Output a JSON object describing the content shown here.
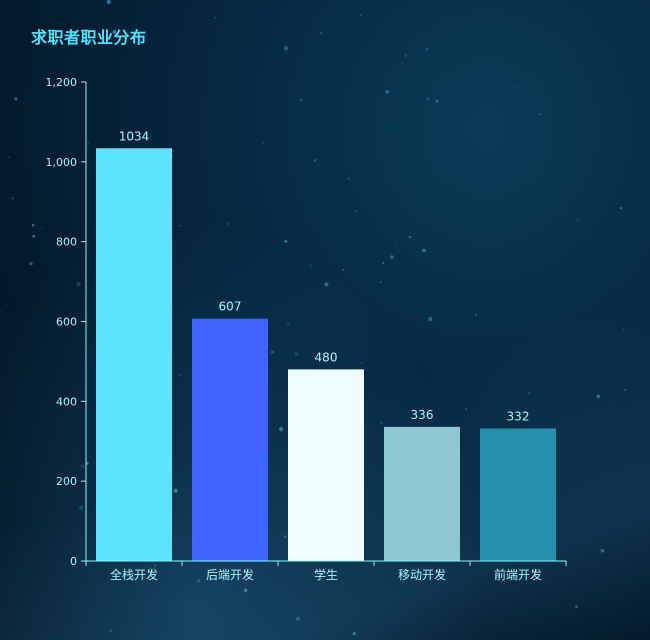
{
  "title": "求职者职业分布",
  "chart_data": {
    "type": "bar",
    "title": "求职者职业分布",
    "categories": [
      "全栈开发",
      "后端开发",
      "学生",
      "移动开发",
      "前端开发"
    ],
    "values": [
      1034,
      607,
      480,
      336,
      332
    ],
    "data_labels": [
      "1034",
      "607",
      "480",
      "336",
      "332"
    ],
    "bar_colors": [
      "#5ee3ff",
      "#3f63ff",
      "#effdff",
      "#8ec7d2",
      "#2590ae"
    ],
    "y_ticks": [
      0,
      200,
      400,
      600,
      800,
      1000,
      1200
    ],
    "y_tick_labels": [
      "0",
      "200",
      "400",
      "600",
      "800",
      "1,000",
      "1,200"
    ],
    "ylim": [
      0,
      1200
    ],
    "xlabel": "",
    "ylabel": "",
    "grid": false,
    "legend": "none",
    "axis_color": "#8ef3ff",
    "label_color": "#a8f4ff"
  }
}
